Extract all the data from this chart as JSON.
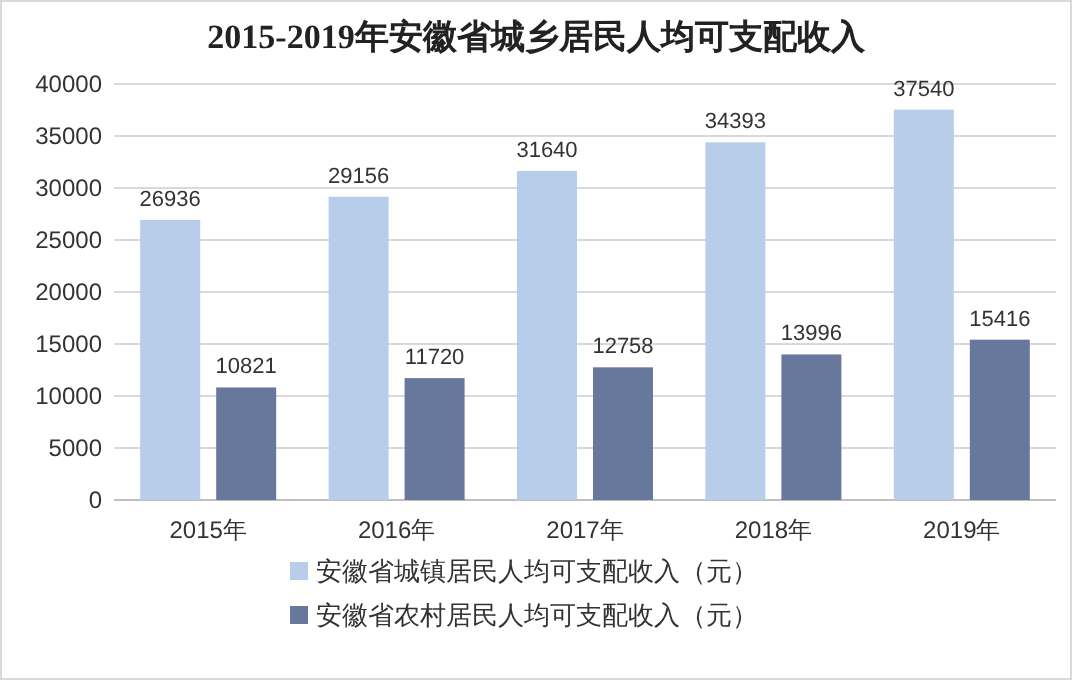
{
  "chart_data": {
    "type": "bar",
    "title": "2015-2019年安徽省城乡居民人均可支配收入",
    "categories": [
      "2015年",
      "2016年",
      "2017年",
      "2018年",
      "2019年"
    ],
    "series": [
      {
        "name": "安徽省城镇居民人均可支配收入（元）",
        "color": "#b7cdea",
        "values": [
          26936,
          29156,
          31640,
          34393,
          37540
        ]
      },
      {
        "name": "安徽省农村居民人均可支配收入（元）",
        "color": "#68779c",
        "values": [
          10821,
          11720,
          12758,
          13996,
          15416
        ]
      }
    ],
    "ylim": [
      0,
      40000
    ],
    "yticks": [
      0,
      5000,
      10000,
      15000,
      20000,
      25000,
      30000,
      35000,
      40000
    ],
    "grid": "y",
    "legend": "bottom",
    "data_labels": true
  }
}
